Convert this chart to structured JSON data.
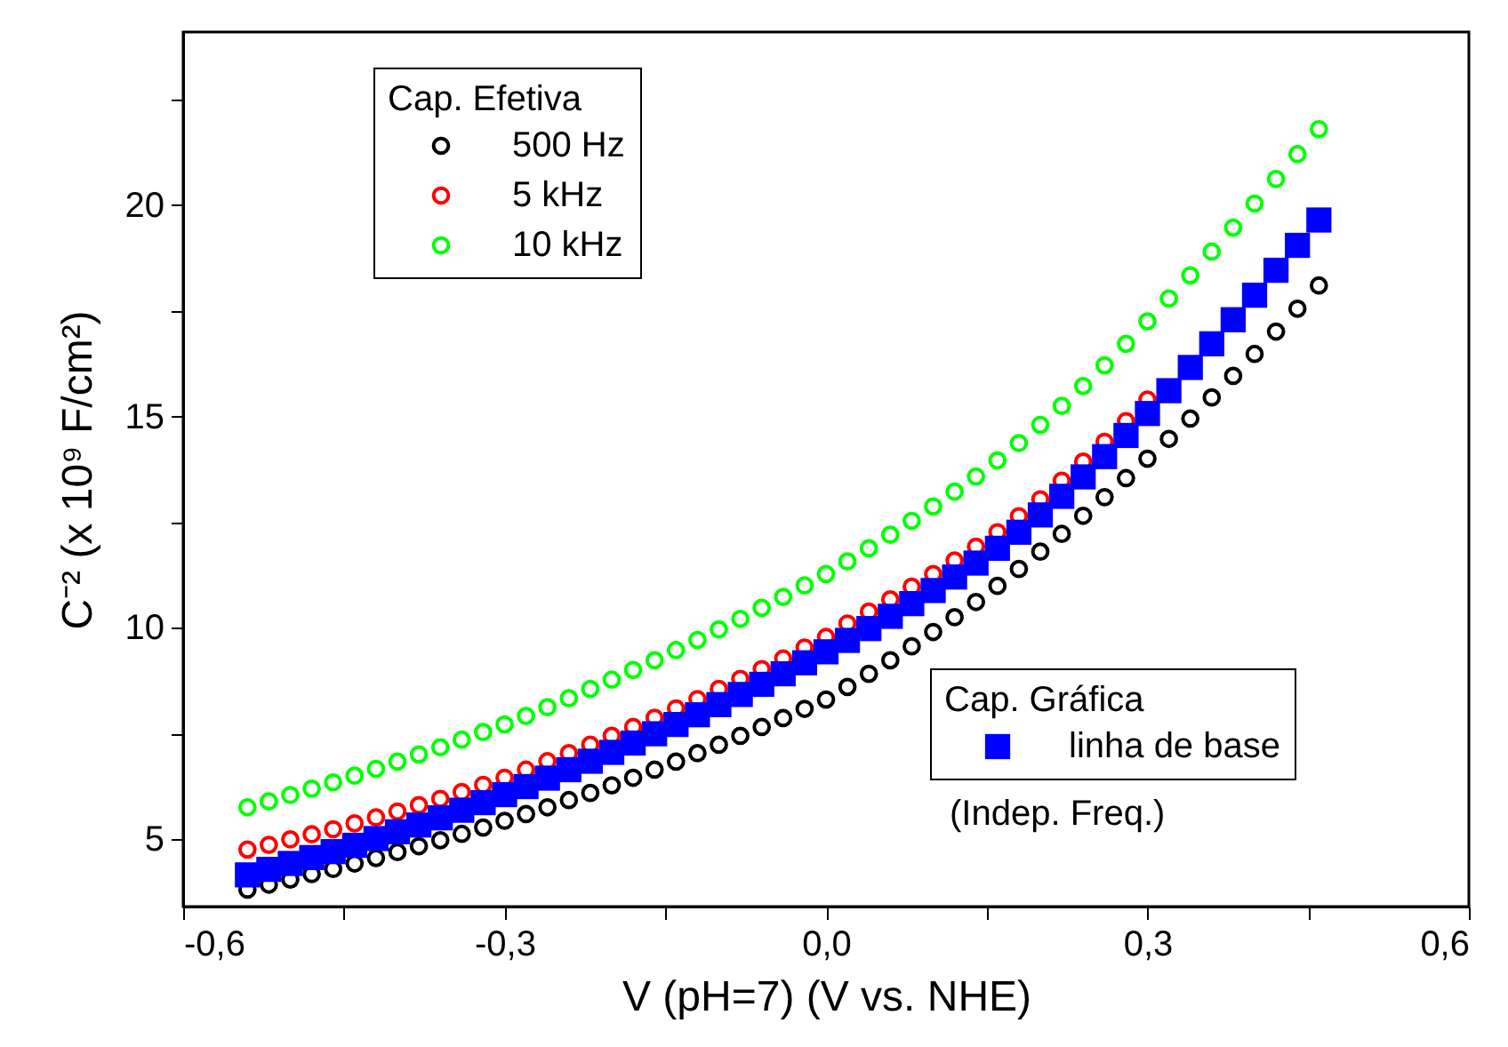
{
  "chart_data": {
    "type": "scatter",
    "xlabel": "V (pH=7) (V vs. NHE)",
    "ylabel": "C⁻² (x 10⁹ F/cm²)",
    "legend_title": "Cap. Efetiva",
    "legend": "top left",
    "annotations": [
      "Cap. Gráfica",
      "(Indep. Freq.)"
    ],
    "x": [
      -0.54,
      -0.52,
      -0.5,
      -0.48,
      -0.46,
      -0.44,
      -0.42,
      -0.4,
      -0.38,
      -0.36,
      -0.34,
      -0.32,
      -0.3,
      -0.28,
      -0.26,
      -0.24,
      -0.22,
      -0.2,
      -0.18,
      -0.16,
      -0.14,
      -0.12,
      -0.1,
      -0.08,
      -0.06,
      -0.04,
      -0.02,
      0.0,
      0.02,
      0.04,
      0.06,
      0.08,
      0.1,
      0.12,
      0.14,
      0.16,
      0.18,
      0.2,
      0.22,
      0.24,
      0.26,
      0.28,
      0.3,
      0.32,
      0.34,
      0.36,
      0.38,
      0.4,
      0.42,
      0.44,
      0.46
    ],
    "series": [
      {
        "name": "500 Hz",
        "color": "#000000",
        "marker": "circle",
        "values": [
          3.8,
          3.92,
          4.04,
          4.17,
          4.29,
          4.42,
          4.55,
          4.69,
          4.83,
          4.97,
          5.12,
          5.27,
          5.43,
          5.59,
          5.75,
          5.92,
          6.09,
          6.27,
          6.45,
          6.64,
          6.83,
          7.03,
          7.23,
          7.44,
          7.65,
          7.86,
          8.08,
          8.3,
          8.6,
          8.91,
          9.23,
          9.56,
          9.9,
          10.25,
          10.61,
          10.99,
          11.39,
          11.8,
          12.22,
          12.65,
          13.09,
          13.54,
          14.0,
          14.47,
          14.95,
          15.45,
          15.96,
          16.48,
          17.01,
          17.55,
          18.1
        ]
      },
      {
        "name": "5 kHz",
        "color": "#ff0000",
        "marker": "circle",
        "values": [
          4.75,
          4.86,
          4.99,
          5.11,
          5.23,
          5.37,
          5.51,
          5.65,
          5.8,
          5.95,
          6.11,
          6.28,
          6.45,
          6.64,
          6.84,
          7.03,
          7.23,
          7.44,
          7.65,
          7.87,
          8.09,
          8.31,
          8.55,
          8.79,
          9.02,
          9.27,
          9.53,
          9.78,
          10.1,
          10.38,
          10.67,
          10.97,
          11.27,
          11.59,
          11.92,
          12.26,
          12.64,
          13.04,
          13.48,
          13.93,
          14.4,
          14.89,
          15.4,
          null,
          null,
          null,
          null,
          null,
          null,
          null,
          null
        ]
      },
      {
        "name": "10 kHz",
        "color": "#00ff00",
        "marker": "circle",
        "values": [
          5.75,
          5.89,
          6.04,
          6.19,
          6.34,
          6.5,
          6.66,
          6.83,
          7.0,
          7.17,
          7.35,
          7.53,
          7.71,
          7.91,
          8.12,
          8.33,
          8.55,
          8.77,
          9.0,
          9.23,
          9.47,
          9.71,
          9.96,
          10.21,
          10.47,
          10.73,
          11.0,
          11.27,
          11.57,
          11.88,
          12.2,
          12.53,
          12.87,
          13.22,
          13.58,
          13.96,
          14.37,
          14.8,
          15.25,
          15.72,
          16.21,
          16.72,
          17.25,
          17.79,
          18.34,
          18.9,
          19.47,
          20.04,
          20.62,
          21.21,
          21.8
        ]
      },
      {
        "name": "linha de base",
        "color": "#0000ff",
        "marker": "square",
        "values": [
          4.15,
          4.28,
          4.42,
          4.56,
          4.7,
          4.85,
          5.01,
          5.17,
          5.33,
          5.5,
          5.68,
          5.86,
          6.05,
          6.24,
          6.44,
          6.64,
          6.84,
          7.05,
          7.27,
          7.49,
          7.71,
          7.94,
          8.18,
          8.42,
          8.66,
          8.91,
          9.17,
          9.43,
          9.7,
          9.98,
          10.27,
          10.57,
          10.88,
          11.2,
          11.53,
          11.88,
          12.26,
          12.67,
          13.11,
          13.57,
          14.05,
          14.55,
          15.07,
          15.61,
          16.16,
          16.72,
          17.29,
          17.87,
          18.46,
          19.05,
          19.65
        ]
      }
    ],
    "xlim": [
      -0.6,
      0.6
    ],
    "xticks": [
      {
        "value": -0.6,
        "label": "-0,6"
      },
      {
        "value": -0.45,
        "label": null
      },
      {
        "value": -0.3,
        "label": "-0,3"
      },
      {
        "value": -0.15,
        "label": null
      },
      {
        "value": 0,
        "label": "0,0"
      },
      {
        "value": 0.15,
        "label": null
      },
      {
        "value": 0.3,
        "label": "0,3"
      },
      {
        "value": 0.45,
        "label": null
      },
      {
        "value": 0.6,
        "label": "0,6"
      }
    ],
    "ylim": [
      3.4,
      24.1
    ],
    "yticks": [
      5,
      {
        "value": 7.5,
        "label": null
      },
      10,
      {
        "value": 12.5,
        "label": null
      },
      15,
      {
        "value": 17.5,
        "label": null
      },
      20,
      {
        "value": 22.5,
        "label": null
      }
    ]
  }
}
